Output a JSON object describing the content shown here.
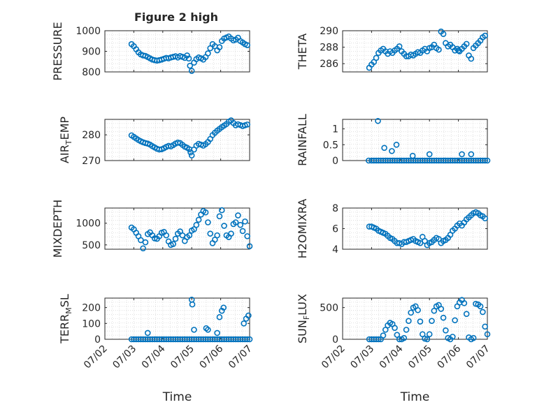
{
  "figure": {
    "title": "Figure 2 high"
  },
  "colors": {
    "marker": "#0072BD",
    "grid": "#d9d9d9",
    "axis": "#262626",
    "background": "#ffffff"
  },
  "chart_data": [
    {
      "type": "scatter",
      "ylabel": "PRESSURE",
      "xlabel": "",
      "grid": true,
      "xlim": [
        0,
        5
      ],
      "ylim": [
        800,
        1000
      ],
      "yticks": [
        800,
        900,
        1000
      ],
      "ytick_labels": [
        "800",
        "900",
        "1000"
      ],
      "xticks": [
        0,
        1,
        2,
        3,
        4,
        5
      ],
      "xtick_labels": [
        "07/02",
        "07/03",
        "07/04",
        "07/05",
        "07/06",
        "07/07"
      ],
      "show_xtick_labels": false,
      "x": [
        0.92,
        1.0,
        1.08,
        1.16,
        1.24,
        1.32,
        1.4,
        1.48,
        1.56,
        1.64,
        1.72,
        1.8,
        1.88,
        1.96,
        2.04,
        2.12,
        2.2,
        2.28,
        2.36,
        2.44,
        2.52,
        2.6,
        2.68,
        2.76,
        2.84,
        2.9,
        2.94,
        3.0,
        3.08,
        3.16,
        3.24,
        3.32,
        3.4,
        3.48,
        3.56,
        3.64,
        3.72,
        3.8,
        3.88,
        3.96,
        4.04,
        4.12,
        4.2,
        4.28,
        4.36,
        4.44,
        4.52,
        4.6,
        4.68,
        4.76,
        4.84,
        4.92
      ],
      "y": [
        935,
        925,
        910,
        895,
        885,
        880,
        878,
        872,
        866,
        860,
        857,
        855,
        857,
        860,
        864,
        868,
        866,
        870,
        873,
        876,
        870,
        877,
        873,
        868,
        880,
        865,
        830,
        805,
        845,
        862,
        870,
        866,
        860,
        872,
        890,
        915,
        935,
        925,
        905,
        920,
        950,
        962,
        967,
        972,
        962,
        953,
        957,
        966,
        950,
        943,
        935,
        930
      ]
    },
    {
      "type": "scatter",
      "ylabel": "THETA",
      "xlabel": "",
      "grid": true,
      "xlim": [
        0,
        5
      ],
      "ylim": [
        285,
        290
      ],
      "yticks": [
        286,
        288,
        290
      ],
      "ytick_labels": [
        "286",
        "288",
        "290"
      ],
      "xticks": [
        0,
        1,
        2,
        3,
        4,
        5
      ],
      "xtick_labels": [
        "07/02",
        "07/03",
        "07/04",
        "07/05",
        "07/06",
        "07/07"
      ],
      "show_xtick_labels": false,
      "x": [
        0.92,
        1.0,
        1.08,
        1.16,
        1.24,
        1.32,
        1.4,
        1.48,
        1.56,
        1.64,
        1.72,
        1.8,
        1.88,
        1.96,
        2.04,
        2.12,
        2.2,
        2.28,
        2.36,
        2.44,
        2.52,
        2.6,
        2.68,
        2.76,
        2.84,
        2.92,
        3.0,
        3.08,
        3.16,
        3.24,
        3.32,
        3.4,
        3.48,
        3.56,
        3.64,
        3.72,
        3.8,
        3.88,
        3.96,
        4.0,
        4.04,
        4.12,
        4.2,
        4.28,
        4.36,
        4.44,
        4.52,
        4.6,
        4.68,
        4.76,
        4.84,
        4.92
      ],
      "y": [
        285.5,
        285.9,
        286.2,
        286.7,
        287.3,
        287.6,
        287.8,
        287.5,
        287.2,
        287.5,
        287.3,
        287.6,
        287.8,
        288.1,
        287.5,
        287.2,
        286.9,
        286.9,
        287.1,
        287.0,
        287.2,
        287.4,
        287.3,
        287.6,
        287.8,
        287.5,
        287.9,
        288.0,
        288.3,
        287.9,
        287.7,
        289.9,
        289.6,
        288.5,
        288.1,
        288.3,
        288.0,
        287.6,
        287.8,
        287.6,
        287.5,
        287.8,
        288.1,
        288.4,
        287.0,
        286.6,
        287.9,
        288.2,
        288.5,
        288.8,
        289.2,
        289.4
      ]
    },
    {
      "type": "scatter",
      "ylabel": "AIR_T_EMP",
      "xlabel": "",
      "grid": true,
      "xlim": [
        0,
        5
      ],
      "ylim": [
        270,
        286
      ],
      "yticks": [
        270,
        280
      ],
      "ytick_labels": [
        "270",
        "280"
      ],
      "xticks": [
        0,
        1,
        2,
        3,
        4,
        5
      ],
      "xtick_labels": [
        "07/02",
        "07/03",
        "07/04",
        "07/05",
        "07/06",
        "07/07"
      ],
      "show_xtick_labels": false,
      "x": [
        0.92,
        1.0,
        1.08,
        1.16,
        1.24,
        1.32,
        1.4,
        1.48,
        1.56,
        1.64,
        1.72,
        1.8,
        1.88,
        1.96,
        2.04,
        2.12,
        2.2,
        2.28,
        2.36,
        2.44,
        2.52,
        2.6,
        2.68,
        2.76,
        2.84,
        2.92,
        2.96,
        3.0,
        3.08,
        3.16,
        3.24,
        3.32,
        3.4,
        3.48,
        3.56,
        3.64,
        3.72,
        3.8,
        3.88,
        3.96,
        4.04,
        4.12,
        4.2,
        4.28,
        4.36,
        4.44,
        4.52,
        4.6,
        4.68,
        4.76,
        4.84,
        4.92
      ],
      "y": [
        279.8,
        279.2,
        278.6,
        278.0,
        277.5,
        277.1,
        276.8,
        276.6,
        276.2,
        275.6,
        275.1,
        274.6,
        274.3,
        274.4,
        274.8,
        275.3,
        275.7,
        275.5,
        276.0,
        276.6,
        277.0,
        276.8,
        276.1,
        275.4,
        275.0,
        274.4,
        273.2,
        272.0,
        274.3,
        275.8,
        276.5,
        276.2,
        275.8,
        276.4,
        277.2,
        278.4,
        279.9,
        280.8,
        281.6,
        282.3,
        283.0,
        283.6,
        284.2,
        285.1,
        285.6,
        284.6,
        283.7,
        284.1,
        283.8,
        283.4,
        283.7,
        284.0
      ]
    },
    {
      "type": "scatter",
      "ylabel": "RAINFALL",
      "xlabel": "",
      "grid": true,
      "xlim": [
        0,
        5
      ],
      "ylim": [
        0,
        1.3
      ],
      "yticks": [
        0,
        0.5,
        1
      ],
      "ytick_labels": [
        "0",
        "0.5",
        "1"
      ],
      "xticks": [
        0,
        1,
        2,
        3,
        4,
        5
      ],
      "xtick_labels": [
        "07/02",
        "07/03",
        "07/04",
        "07/05",
        "07/06",
        "07/07"
      ],
      "show_xtick_labels": false,
      "x": [
        0.9,
        1.0,
        1.08,
        1.16,
        1.24,
        1.32,
        1.4,
        1.48,
        1.56,
        1.64,
        1.72,
        1.8,
        1.88,
        1.96,
        2.04,
        2.12,
        2.2,
        2.28,
        2.36,
        2.44,
        2.52,
        2.6,
        2.68,
        2.76,
        2.84,
        2.92,
        3.0,
        3.08,
        3.16,
        3.24,
        3.32,
        3.4,
        3.48,
        3.56,
        3.64,
        3.72,
        3.8,
        3.88,
        3.96,
        4.04,
        4.12,
        4.2,
        4.28,
        4.36,
        4.44,
        4.52,
        4.6,
        4.68,
        4.76,
        4.84,
        4.92,
        5.0,
        1.22,
        1.44,
        1.7,
        1.86,
        2.42,
        3.0,
        4.12,
        4.44
      ],
      "y": [
        0,
        0,
        0,
        0,
        0,
        0,
        0,
        0,
        0,
        0,
        0,
        0,
        0,
        0,
        0,
        0,
        0,
        0,
        0,
        0,
        0,
        0,
        0,
        0,
        0,
        0,
        0,
        0,
        0,
        0,
        0,
        0,
        0,
        0,
        0,
        0,
        0,
        0,
        0,
        0,
        0,
        0,
        0,
        0,
        0,
        0,
        0,
        0,
        0,
        0,
        0,
        0,
        1.25,
        0.4,
        0.3,
        0.5,
        0.15,
        0.2,
        0.2,
        0.2
      ]
    },
    {
      "type": "scatter",
      "ylabel": "MIXDEPTH",
      "xlabel": "",
      "grid": true,
      "xlim": [
        0,
        5
      ],
      "ylim": [
        400,
        1350
      ],
      "yticks": [
        500,
        1000
      ],
      "ytick_labels": [
        "500",
        "1000"
      ],
      "xticks": [
        0,
        1,
        2,
        3,
        4,
        5
      ],
      "xtick_labels": [
        "07/02",
        "07/03",
        "07/04",
        "07/05",
        "07/06",
        "07/07"
      ],
      "show_xtick_labels": false,
      "x": [
        0.92,
        1.0,
        1.08,
        1.16,
        1.24,
        1.32,
        1.4,
        1.48,
        1.56,
        1.64,
        1.72,
        1.8,
        1.88,
        1.96,
        2.04,
        2.12,
        2.2,
        2.28,
        2.36,
        2.44,
        2.52,
        2.6,
        2.68,
        2.76,
        2.84,
        2.92,
        3.0,
        3.08,
        3.16,
        3.24,
        3.32,
        3.4,
        3.48,
        3.56,
        3.64,
        3.72,
        3.8,
        3.88,
        3.96,
        4.04,
        4.12,
        4.2,
        4.28,
        4.36,
        4.44,
        4.52,
        4.6,
        4.68,
        4.76,
        4.84,
        4.92,
        5.0
      ],
      "y": [
        900,
        860,
        780,
        700,
        610,
        420,
        560,
        750,
        790,
        720,
        650,
        640,
        700,
        780,
        800,
        720,
        580,
        500,
        520,
        640,
        760,
        810,
        720,
        590,
        680,
        720,
        830,
        860,
        960,
        1080,
        1200,
        1280,
        1250,
        1020,
        760,
        540,
        620,
        720,
        1160,
        1300,
        940,
        720,
        680,
        760,
        980,
        1020,
        1180,
        960,
        820,
        1040,
        700,
        470
      ]
    },
    {
      "type": "scatter",
      "ylabel": "H2OMIXRA",
      "xlabel": "",
      "grid": true,
      "xlim": [
        0,
        5
      ],
      "ylim": [
        4,
        8
      ],
      "yticks": [
        4,
        6,
        8
      ],
      "ytick_labels": [
        "4",
        "6",
        "8"
      ],
      "xticks": [
        0,
        1,
        2,
        3,
        4,
        5
      ],
      "xtick_labels": [
        "07/02",
        "07/03",
        "07/04",
        "07/05",
        "07/06",
        "07/07"
      ],
      "show_xtick_labels": false,
      "x": [
        0.92,
        1.0,
        1.08,
        1.16,
        1.24,
        1.32,
        1.4,
        1.48,
        1.56,
        1.64,
        1.72,
        1.8,
        1.88,
        1.96,
        2.04,
        2.12,
        2.2,
        2.28,
        2.36,
        2.44,
        2.52,
        2.6,
        2.68,
        2.76,
        2.84,
        2.92,
        3.0,
        3.08,
        3.16,
        3.24,
        3.32,
        3.4,
        3.48,
        3.56,
        3.64,
        3.72,
        3.8,
        3.88,
        3.96,
        4.04,
        4.12,
        4.2,
        4.28,
        4.36,
        4.44,
        4.52,
        4.6,
        4.68,
        4.76,
        4.84,
        4.92
      ],
      "y": [
        6.2,
        6.2,
        6.1,
        6.0,
        5.8,
        5.7,
        5.6,
        5.5,
        5.3,
        5.1,
        5.0,
        4.8,
        4.6,
        4.6,
        4.5,
        4.7,
        4.7,
        4.8,
        4.9,
        5.0,
        4.8,
        4.7,
        4.6,
        5.2,
        4.8,
        4.4,
        4.6,
        4.7,
        4.9,
        5.1,
        5.0,
        4.6,
        4.8,
        4.9,
        5.1,
        5.4,
        5.8,
        6.0,
        6.3,
        6.5,
        6.3,
        6.6,
        6.9,
        7.1,
        7.3,
        7.5,
        7.6,
        7.5,
        7.3,
        7.2,
        7.0
      ]
    },
    {
      "type": "scatter",
      "ylabel": "TERR_M_SL",
      "xlabel": "Time",
      "grid": true,
      "xlim": [
        0,
        5
      ],
      "ylim": [
        0,
        260
      ],
      "yticks": [
        0,
        100,
        200
      ],
      "ytick_labels": [
        "0",
        "100",
        "200"
      ],
      "xticks": [
        0,
        1,
        2,
        3,
        4,
        5
      ],
      "xtick_labels": [
        "07/02",
        "07/03",
        "07/04",
        "07/05",
        "07/06",
        "07/07"
      ],
      "show_xtick_labels": true,
      "x": [
        0.92,
        1.0,
        1.08,
        1.16,
        1.24,
        1.32,
        1.4,
        1.48,
        1.56,
        1.64,
        1.72,
        1.8,
        1.88,
        1.96,
        2.04,
        2.12,
        2.2,
        2.28,
        2.36,
        2.44,
        2.52,
        2.6,
        2.68,
        2.76,
        2.84,
        2.92,
        3.0,
        3.08,
        3.16,
        3.24,
        3.32,
        3.4,
        3.48,
        3.56,
        3.64,
        3.72,
        3.8,
        3.88,
        3.96,
        4.04,
        4.12,
        4.2,
        4.28,
        4.36,
        4.44,
        4.52,
        4.6,
        4.68,
        4.76,
        4.84,
        4.92,
        5.0,
        1.48,
        3.0,
        3.02,
        3.08,
        3.5,
        3.56,
        3.88,
        3.96,
        4.04,
        4.1,
        4.8,
        4.88,
        4.96
      ],
      "y": [
        0,
        0,
        0,
        0,
        0,
        0,
        0,
        0,
        0,
        0,
        0,
        0,
        0,
        0,
        0,
        0,
        0,
        0,
        0,
        0,
        0,
        0,
        0,
        0,
        0,
        0,
        0,
        0,
        0,
        0,
        0,
        0,
        0,
        0,
        0,
        0,
        0,
        0,
        0,
        0,
        0,
        0,
        0,
        0,
        0,
        0,
        0,
        0,
        0,
        0,
        0,
        0,
        40,
        250,
        220,
        60,
        70,
        60,
        40,
        140,
        180,
        200,
        100,
        130,
        150
      ]
    },
    {
      "type": "scatter",
      "ylabel": "SUN_F_LUX",
      "xlabel": "Time",
      "grid": true,
      "xlim": [
        0,
        5
      ],
      "ylim": [
        0,
        650
      ],
      "yticks": [
        0,
        500
      ],
      "ytick_labels": [
        "0",
        "500"
      ],
      "xticks": [
        0,
        1,
        2,
        3,
        4,
        5
      ],
      "xtick_labels": [
        "07/02",
        "07/03",
        "07/04",
        "07/05",
        "07/06",
        "07/07"
      ],
      "show_xtick_labels": true,
      "x": [
        0.92,
        1.0,
        1.08,
        1.16,
        1.24,
        1.32,
        1.4,
        1.48,
        1.56,
        1.64,
        1.72,
        1.8,
        1.88,
        1.96,
        2.04,
        2.12,
        2.2,
        2.28,
        2.36,
        2.44,
        2.52,
        2.6,
        2.68,
        2.76,
        2.84,
        2.92,
        3.0,
        3.08,
        3.16,
        3.24,
        3.32,
        3.4,
        3.48,
        3.56,
        3.64,
        3.72,
        3.8,
        3.88,
        3.96,
        4.04,
        4.12,
        4.2,
        4.28,
        4.36,
        4.44,
        4.52,
        4.6,
        4.68,
        4.76,
        4.84,
        4.92,
        5.0
      ],
      "y": [
        0,
        0,
        0,
        0,
        0,
        0,
        60,
        150,
        220,
        260,
        240,
        180,
        70,
        0,
        0,
        20,
        150,
        290,
        420,
        500,
        520,
        460,
        280,
        80,
        10,
        0,
        80,
        290,
        450,
        520,
        540,
        480,
        340,
        140,
        20,
        0,
        40,
        300,
        520,
        580,
        620,
        570,
        400,
        30,
        0,
        20,
        560,
        550,
        520,
        430,
        200,
        80
      ]
    }
  ]
}
